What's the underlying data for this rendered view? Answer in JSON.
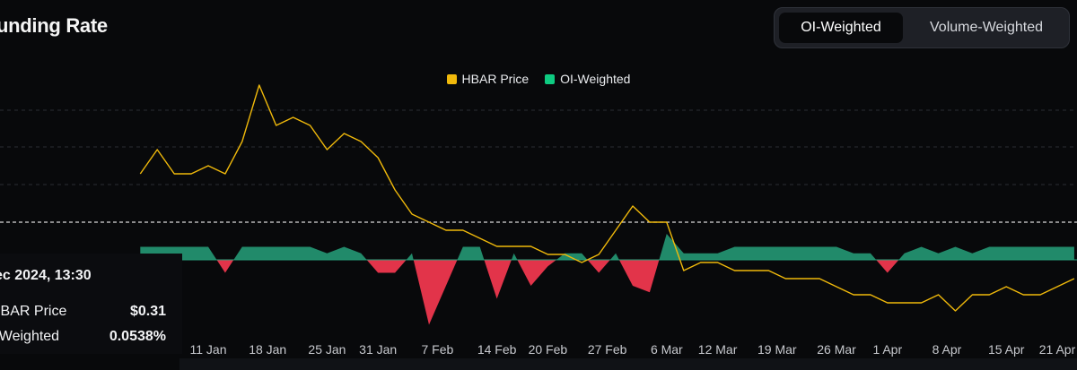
{
  "header": {
    "title": "unding Rate",
    "toggle": {
      "active_label": "OI-Weighted",
      "inactive_label": "Volume-Weighted"
    }
  },
  "legend": {
    "items": [
      {
        "label": "HBAR Price",
        "color": "#f0b90b"
      },
      {
        "label": "OI-Weighted",
        "color": "#0ecb81"
      }
    ]
  },
  "tooltip": {
    "date": "ec 2024, 13:30",
    "rows": [
      {
        "label": "HBAR Price",
        "value": "$0.31"
      },
      {
        "label": "I-Weighted",
        "value": "0.0538%"
      }
    ]
  },
  "colors": {
    "price": "#f0b90b",
    "positive": "#26a17b",
    "negative": "#e2344a",
    "grid": "#2a2d33",
    "tick": "#c7c9ce"
  },
  "chart_data": {
    "type": "line",
    "grid": true,
    "legend_position": "top-center",
    "x_tick_labels": [
      "11 Jan",
      "18 Jan",
      "25 Jan",
      "31 Jan",
      "7 Feb",
      "14 Feb",
      "20 Feb",
      "27 Feb",
      "6 Mar",
      "12 Mar",
      "19 Mar",
      "26 Mar",
      "1 Apr",
      "8 Apr",
      "15 Apr",
      "21 Apr"
    ],
    "series": [
      {
        "name": "HBAR Price",
        "x": [
          "3 Jan",
          "5 Jan",
          "7 Jan",
          "9 Jan",
          "11 Jan",
          "13 Jan",
          "15 Jan",
          "17 Jan",
          "19 Jan",
          "21 Jan",
          "23 Jan",
          "25 Jan",
          "27 Jan",
          "29 Jan",
          "31 Jan",
          "2 Feb",
          "4 Feb",
          "6 Feb",
          "8 Feb",
          "10 Feb",
          "12 Feb",
          "14 Feb",
          "16 Feb",
          "18 Feb",
          "20 Feb",
          "22 Feb",
          "24 Feb",
          "26 Feb",
          "28 Feb",
          "2 Mar",
          "4 Mar",
          "6 Mar",
          "8 Mar",
          "10 Mar",
          "12 Mar",
          "14 Mar",
          "16 Mar",
          "18 Mar",
          "20 Mar",
          "22 Mar",
          "24 Mar",
          "26 Mar",
          "28 Mar",
          "30 Mar",
          "1 Apr",
          "3 Apr",
          "5 Apr",
          "7 Apr",
          "9 Apr",
          "11 Apr",
          "13 Apr",
          "15 Apr",
          "17 Apr",
          "19 Apr",
          "21 Apr",
          "23 Apr"
        ],
        "values": [
          0.31,
          0.34,
          0.31,
          0.31,
          0.32,
          0.31,
          0.35,
          0.42,
          0.37,
          0.38,
          0.37,
          0.34,
          0.36,
          0.35,
          0.33,
          0.29,
          0.26,
          0.25,
          0.24,
          0.24,
          0.23,
          0.22,
          0.22,
          0.22,
          0.21,
          0.21,
          0.2,
          0.21,
          0.24,
          0.27,
          0.25,
          0.25,
          0.19,
          0.2,
          0.2,
          0.19,
          0.19,
          0.19,
          0.18,
          0.18,
          0.18,
          0.17,
          0.16,
          0.16,
          0.15,
          0.15,
          0.15,
          0.16,
          0.14,
          0.16,
          0.16,
          0.17,
          0.16,
          0.16,
          0.17,
          0.18
        ]
      },
      {
        "name": "OI-Weighted",
        "x": [
          "3 Jan",
          "5 Jan",
          "7 Jan",
          "9 Jan",
          "11 Jan",
          "13 Jan",
          "15 Jan",
          "17 Jan",
          "19 Jan",
          "21 Jan",
          "23 Jan",
          "25 Jan",
          "27 Jan",
          "29 Jan",
          "31 Jan",
          "2 Feb",
          "4 Feb",
          "6 Feb",
          "8 Feb",
          "10 Feb",
          "12 Feb",
          "14 Feb",
          "16 Feb",
          "18 Feb",
          "20 Feb",
          "22 Feb",
          "24 Feb",
          "26 Feb",
          "28 Feb",
          "2 Mar",
          "4 Mar",
          "6 Mar",
          "8 Mar",
          "10 Mar",
          "12 Mar",
          "14 Mar",
          "16 Mar",
          "18 Mar",
          "20 Mar",
          "22 Mar",
          "24 Mar",
          "26 Mar",
          "28 Mar",
          "30 Mar",
          "1 Apr",
          "3 Apr",
          "5 Apr",
          "7 Apr",
          "9 Apr",
          "11 Apr",
          "13 Apr",
          "15 Apr",
          "17 Apr",
          "19 Apr",
          "21 Apr",
          "23 Apr"
        ],
        "values": [
          0.01,
          0.01,
          0.01,
          0.01,
          0.01,
          -0.01,
          0.01,
          0.01,
          0.01,
          0.01,
          0.01,
          0.005,
          0.01,
          0.005,
          -0.01,
          -0.01,
          0.005,
          -0.05,
          -0.02,
          0.01,
          0.01,
          -0.03,
          0.005,
          -0.02,
          -0.005,
          0.005,
          0.005,
          -0.01,
          0.005,
          -0.02,
          -0.025,
          0.02,
          0.005,
          0.005,
          0.005,
          0.01,
          0.01,
          0.01,
          0.01,
          0.01,
          0.01,
          0.01,
          0.005,
          0.005,
          -0.01,
          0.005,
          0.01,
          0.005,
          0.01,
          0.005,
          0.01,
          0.01,
          0.01,
          0.01,
          0.01,
          0.01
        ]
      }
    ]
  }
}
